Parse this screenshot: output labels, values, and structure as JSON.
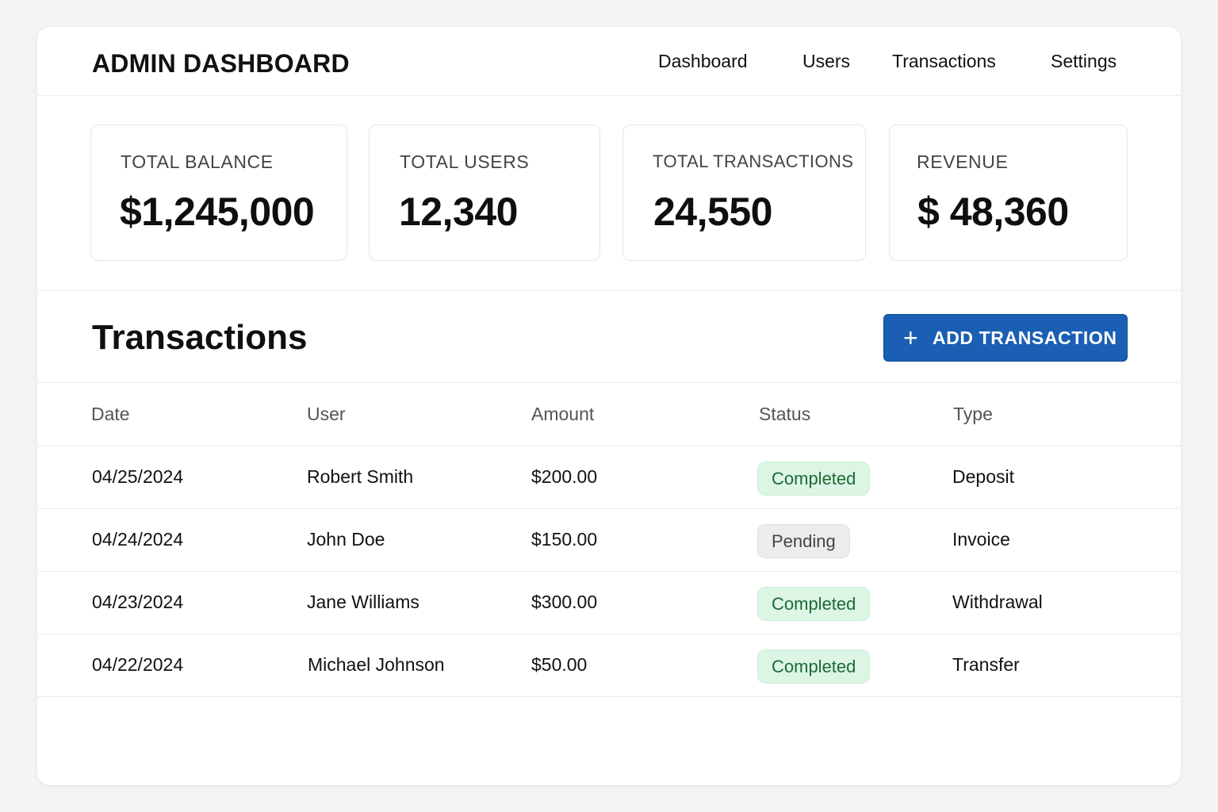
{
  "header": {
    "title": "ADMIN DASHBOARD",
    "nav": [
      "Dashboard",
      "Users",
      "Transactions",
      "Settings"
    ]
  },
  "stats": [
    {
      "label": "TOTAL BALANCE",
      "value": "$1,245,000"
    },
    {
      "label": "TOTAL USERS",
      "value": "12,340"
    },
    {
      "label": "TOTAL TRANSACTIONS",
      "value": "24,550"
    },
    {
      "label": "REVENUE",
      "value": "$ 48,360"
    }
  ],
  "transactions": {
    "title": "Transactions",
    "add_button": {
      "icon": "plus-icon",
      "label": "ADD TRANSACTION"
    },
    "columns": [
      "Date",
      "User",
      "Amount",
      "Status",
      "Type"
    ],
    "rows": [
      {
        "date": "04/25/2024",
        "user": "Robert Smith",
        "amount": "$200.00",
        "status": "Completed",
        "type": "Deposit"
      },
      {
        "date": "04/24/2024",
        "user": "John Doe",
        "amount": "$150.00",
        "status": "Pending",
        "type": "Invoice"
      },
      {
        "date": "04/23/2024",
        "user": "Jane Williams",
        "amount": "$300.00",
        "status": "Completed",
        "type": "Withdrawal"
      },
      {
        "date": "04/22/2024",
        "user": "Michael Johnson",
        "amount": "$50.00",
        "status": "Completed",
        "type": "Transfer"
      }
    ]
  },
  "colors": {
    "accent": "#1a5fb4",
    "completed_bg": "#dcf5e5",
    "completed_text": "#1d6a35",
    "pending_bg": "#ececec",
    "pending_text": "#444444"
  }
}
